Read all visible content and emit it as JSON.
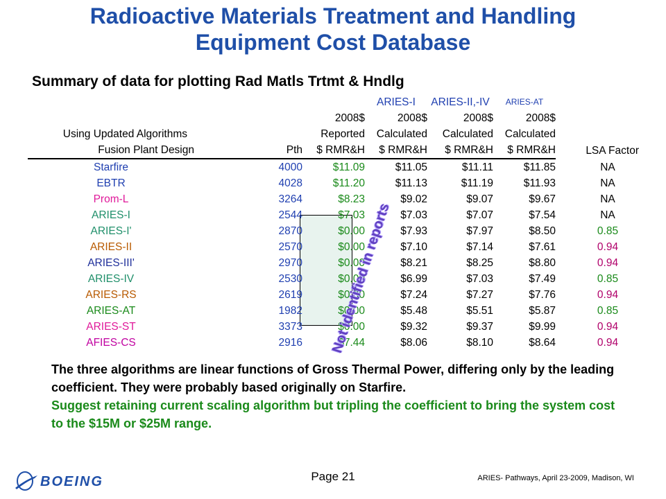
{
  "title_line1": "Radioactive Materials Treatment  and Handling",
  "title_line2": "Equipment Cost Database",
  "subtitle": "Summary of data for plotting Rad Matls Trtmt & Hndlg",
  "header": {
    "aries_i": "ARIES-I",
    "aries_ii_iv": "ARIES-II,-IV",
    "aries_at": "ARIES-AT",
    "year1": "2008$",
    "year2": "2008$",
    "year3": "2008$",
    "year4": "2008$",
    "reported": "Reported",
    "calc1": "Calculated",
    "calc2": "Calculated",
    "calc3": "Calculated",
    "using": "Using Updated Algorithms",
    "fusion": "Fusion Plant Design",
    "pth": "Pth",
    "rmr1": "$ RMR&H",
    "rmr2": "$ RMR&H",
    "rmr3": "$ RMR&H",
    "rmr4": "$ RMR&H",
    "lsa": "LSA Factor"
  },
  "rows": [
    {
      "name": "Starfire",
      "pth": "4000",
      "rep": "$11.09",
      "c1": "$11.05",
      "c2": "$11.11",
      "c3": "$11.85",
      "lsa": "NA"
    },
    {
      "name": "EBTR",
      "pth": "4028",
      "rep": "$11.20",
      "c1": "$11.13",
      "c2": "$11.19",
      "c3": "$11.93",
      "lsa": "NA"
    },
    {
      "name": "Prom-L",
      "pth": "3264",
      "rep": "$8.23",
      "c1": "$9.02",
      "c2": "$9.07",
      "c3": "$9.67",
      "lsa": "NA"
    },
    {
      "name": "ARIES-I",
      "pth": "2544",
      "rep": "$7.03",
      "c1": "$7.03",
      "c2": "$7.07",
      "c3": "$7.54",
      "lsa": "NA"
    },
    {
      "name": "ARIES-I'",
      "pth": "2870",
      "rep": "$0.00",
      "c1": "$7.93",
      "c2": "$7.97",
      "c3": "$8.50",
      "lsa": "0.85"
    },
    {
      "name": "ARIES-II",
      "pth": "2570",
      "rep": "$0.00",
      "c1": "$7.10",
      "c2": "$7.14",
      "c3": "$7.61",
      "lsa": "0.94"
    },
    {
      "name": "ARIES-III'",
      "pth": "2970",
      "rep": "$0.00",
      "c1": "$8.21",
      "c2": "$8.25",
      "c3": "$8.80",
      "lsa": "0.94"
    },
    {
      "name": "ARIES-IV",
      "pth": "2530",
      "rep": "$0.00",
      "c1": "$6.99",
      "c2": "$7.03",
      "c3": "$7.49",
      "lsa": "0.85"
    },
    {
      "name": "ARIES-RS",
      "pth": "2619",
      "rep": "$0.00",
      "c1": "$7.24",
      "c2": "$7.27",
      "c3": "$7.76",
      "lsa": "0.94"
    },
    {
      "name": "ARIES-AT",
      "pth": "1982",
      "rep": "$0.00",
      "c1": "$5.48",
      "c2": "$5.51",
      "c3": "$5.87",
      "lsa": "0.85"
    },
    {
      "name": "ARIES-ST",
      "pth": "3373",
      "rep": "$0.00",
      "c1": "$9.32",
      "c2": "$9.37",
      "c3": "$9.99",
      "lsa": "0.94"
    },
    {
      "name": "AFIES-CS",
      "pth": "2916",
      "rep": "$7.44",
      "c1": "$8.06",
      "c2": "$8.10",
      "c3": "$8.64",
      "lsa": "0.94"
    }
  ],
  "stamp": "Not identified in reports",
  "body_black": "The three algorithms are linear functions of Gross Thermal Power, differing only by the leading coefficient.  They were probably based originally on Starfire.",
  "body_green": "Suggest retaining current scaling algorithm but tripling the coefficient to bring the system cost to the $15M or $25M range.",
  "page": "Page 21",
  "footer": "ARIES- Pathways, April 23-2009, Madison, WI",
  "logo_text": "BOEING",
  "colors": {
    "title": "#1f4fa8",
    "green": "#1a8a1a",
    "pink": "#e0199a",
    "blue": "#1f3fb0"
  }
}
